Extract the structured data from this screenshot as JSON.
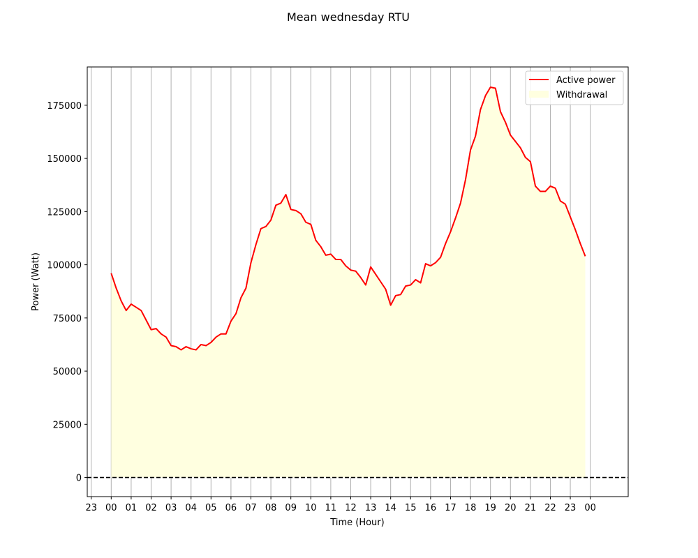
{
  "chart_data": {
    "type": "area",
    "title": "Mean wednesday RTU",
    "xlabel": "Time (Hour)",
    "ylabel": "Power (Watt)",
    "xlim": [
      -1.2,
      25.9
    ],
    "ylim": [
      -9000,
      193000
    ],
    "x_tick_labels": [
      "23",
      "00",
      "01",
      "02",
      "03",
      "04",
      "05",
      "06",
      "07",
      "08",
      "09",
      "10",
      "11",
      "12",
      "13",
      "14",
      "15",
      "16",
      "17",
      "18",
      "19",
      "20",
      "21",
      "22",
      "23",
      "00"
    ],
    "x_tick_positions": [
      -1,
      0,
      1,
      2,
      3,
      4,
      5,
      6,
      7,
      8,
      9,
      10,
      11,
      12,
      13,
      14,
      15,
      16,
      17,
      18,
      19,
      20,
      21,
      22,
      23,
      24
    ],
    "y_ticks": [
      0,
      25000,
      50000,
      75000,
      100000,
      125000,
      150000,
      175000
    ],
    "grid": "vertical",
    "legend_position": "top-right",
    "reference_line": {
      "y": 0,
      "style": "dashed",
      "color": "#000000"
    },
    "colors": {
      "line": "#ff0000",
      "fill": "#ffffe0",
      "grid": "#b0b0b0"
    },
    "series": [
      {
        "name": "Active power",
        "kind": "line"
      },
      {
        "name": "Withdrawal",
        "kind": "fill"
      }
    ],
    "x": [
      0.0,
      0.25,
      0.5,
      0.75,
      1.0,
      1.25,
      1.5,
      1.75,
      2.0,
      2.25,
      2.5,
      2.75,
      3.0,
      3.25,
      3.5,
      3.75,
      4.0,
      4.25,
      4.5,
      4.75,
      5.0,
      5.25,
      5.5,
      5.75,
      6.0,
      6.25,
      6.5,
      6.75,
      7.0,
      7.25,
      7.5,
      7.75,
      8.0,
      8.25,
      8.5,
      8.75,
      9.0,
      9.25,
      9.5,
      9.75,
      10.0,
      10.25,
      10.5,
      10.75,
      11.0,
      11.25,
      11.5,
      11.75,
      12.0,
      12.25,
      12.5,
      12.75,
      13.0,
      13.25,
      13.5,
      13.75,
      14.0,
      14.25,
      14.5,
      14.75,
      15.0,
      15.25,
      15.5,
      15.75,
      16.0,
      16.25,
      16.5,
      16.75,
      17.0,
      17.25,
      17.5,
      17.75,
      18.0,
      18.25,
      18.5,
      18.75,
      19.0,
      19.25,
      19.5,
      19.75,
      20.0,
      20.25,
      20.5,
      20.75,
      21.0,
      21.25,
      21.5,
      21.75,
      22.0,
      22.25,
      22.5,
      22.75,
      23.0,
      23.25,
      23.5,
      23.75
    ],
    "values": [
      96000,
      89000,
      83000,
      78500,
      81500,
      80000,
      78500,
      74000,
      69500,
      70000,
      67500,
      66000,
      62000,
      61500,
      60000,
      61500,
      60500,
      60000,
      62500,
      62000,
      63500,
      66000,
      67500,
      67500,
      73500,
      77000,
      84500,
      89000,
      101000,
      109500,
      117000,
      118000,
      121000,
      128000,
      129000,
      133000,
      126000,
      125500,
      124000,
      120000,
      119000,
      111500,
      108500,
      104500,
      105000,
      102500,
      102500,
      99500,
      97500,
      97000,
      94000,
      90500,
      99000,
      95500,
      92000,
      88500,
      81000,
      85500,
      86000,
      90000,
      90500,
      93000,
      91500,
      100500,
      99500,
      101000,
      103500,
      110000,
      115500,
      122000,
      129000,
      140000,
      154000,
      160500,
      173000,
      179500,
      183500,
      183000,
      172000,
      167000,
      161000,
      158000,
      155000,
      150500,
      148500,
      137000,
      134500,
      134500,
      137000,
      136000,
      130000,
      128500,
      122500,
      116500,
      110000,
      104000
    ]
  }
}
